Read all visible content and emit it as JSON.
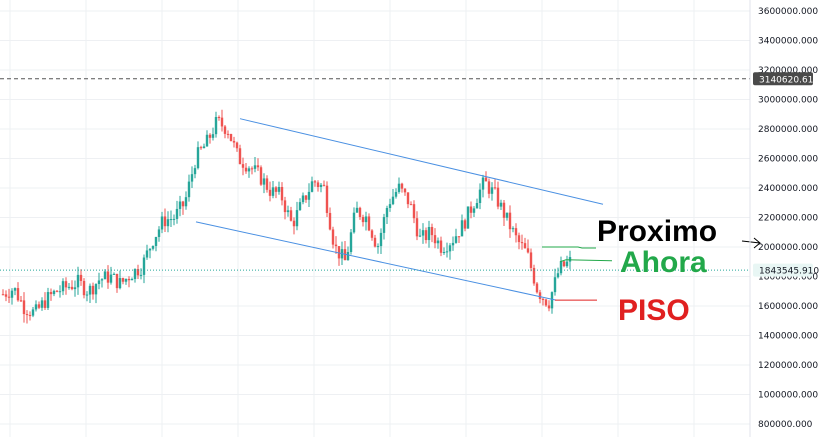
{
  "chart_data": {
    "type": "candlestick",
    "title": "",
    "xlabel": "",
    "ylabel": "",
    "ylim": [
      760000,
      3700000
    ],
    "y_ticks": [
      {
        "value": 3600000,
        "label": "3600000.000"
      },
      {
        "value": 3400000,
        "label": "3400000.000"
      },
      {
        "value": 3200000,
        "label": "3200000.000"
      },
      {
        "value": 3000000,
        "label": "3000000.000"
      },
      {
        "value": 2800000,
        "label": "2800000.000"
      },
      {
        "value": 2600000,
        "label": "2600000.000"
      },
      {
        "value": 2400000,
        "label": "2400000.000"
      },
      {
        "value": 2200000,
        "label": "2200000.000"
      },
      {
        "value": 2000000,
        "label": "2000000.000"
      },
      {
        "value": 1800000,
        "label": "1800000.000"
      },
      {
        "value": 1600000,
        "label": "1600000.000"
      },
      {
        "value": 1400000,
        "label": "1400000.000"
      },
      {
        "value": 1200000,
        "label": "1200000.000"
      },
      {
        "value": 1000000,
        "label": "1000000.000"
      },
      {
        "value": 800000,
        "label": "800000.000"
      }
    ],
    "grid": true,
    "price_path": [
      1680000,
      1720000,
      1590000,
      1550000,
      1640000,
      1700000,
      1730000,
      1760000,
      1700000,
      1780000,
      1800000,
      1750000,
      1820000,
      1870000,
      2050000,
      2180000,
      2200000,
      2300000,
      2600000,
      2700000,
      2850000,
      2800000,
      2600000,
      2550000,
      2480000,
      2380000,
      2350000,
      2150000,
      2300000,
      2450000,
      2400000,
      2000000,
      1900000,
      2250000,
      2200000,
      2000000,
      2300000,
      2400000,
      2300000,
      2050000,
      2100000,
      2000000,
      2050000,
      2150000,
      2300000,
      2440000,
      2350000,
      2200000,
      2050000,
      1950000,
      1700000,
      1620000,
      1850000,
      1900000
    ],
    "horizontal_lines": [
      {
        "name": "dashed-level",
        "value": 3140620.611,
        "label": "3140620.611",
        "color": "#555555",
        "style": "dashed"
      },
      {
        "name": "current-price",
        "value": 1843545.91,
        "label": "1843545.910",
        "color": "#26a69a",
        "style": "dotted"
      }
    ],
    "channel": {
      "color": "#4a90e2",
      "upper": {
        "start_value": 2870000,
        "end_value": 2290000
      },
      "lower": {
        "start_value": 2170000,
        "end_value": 1640000
      }
    },
    "annotations": [
      {
        "text": "Proximo",
        "color": "#000000",
        "value": 2000000
      },
      {
        "text": "Ahora",
        "color": "#22a84a",
        "value": 1900000
      },
      {
        "text": "PISO",
        "color": "#e02020",
        "value": 1650000
      }
    ],
    "up_color": "#26a69a",
    "down_color": "#ef5350"
  }
}
